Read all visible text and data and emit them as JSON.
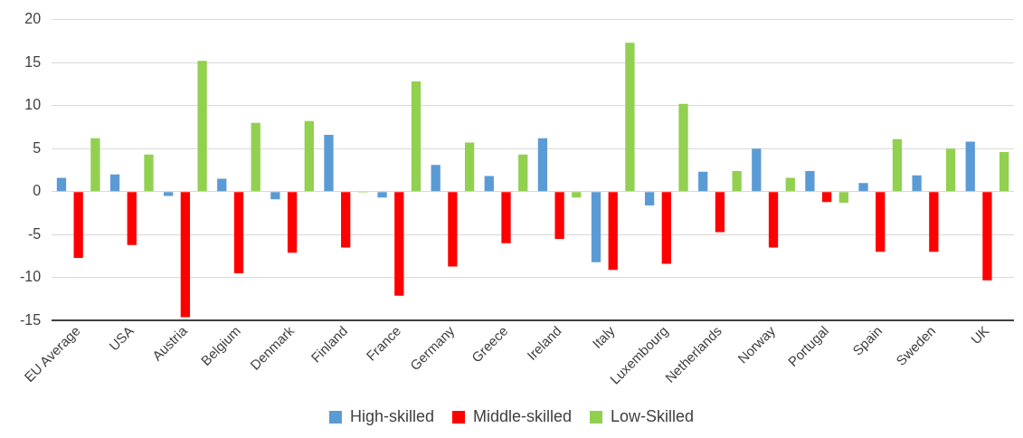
{
  "chart_data": {
    "type": "bar",
    "categories": [
      "EU Average",
      "USA",
      "Austria",
      "Belgium",
      "Denmark",
      "Finland",
      "France",
      "Germany",
      "Greece",
      "Ireland",
      "Italy",
      "Luxembourg",
      "Netherlands",
      "Norway",
      "Portugal",
      "Spain",
      "Sweden",
      "UK"
    ],
    "series": [
      {
        "name": "High-skilled",
        "color": "#5b9bd5",
        "values": [
          1.6,
          2.0,
          -0.5,
          1.5,
          -0.9,
          6.6,
          -0.7,
          3.1,
          1.8,
          6.2,
          -8.2,
          -1.6,
          2.3,
          5.0,
          2.4,
          1.0,
          1.9,
          5.8
        ]
      },
      {
        "name": "Middle-skilled",
        "color": "#ff0000",
        "values": [
          -7.7,
          -6.2,
          -14.6,
          -9.5,
          -7.1,
          -6.5,
          -12.1,
          -8.7,
          -6.0,
          -5.5,
          -9.1,
          -8.4,
          -4.7,
          -6.5,
          -1.2,
          -7.0,
          -7.0,
          -10.3
        ]
      },
      {
        "name": "Low-Skilled",
        "color": "#92d050",
        "values": [
          6.2,
          4.3,
          15.2,
          8.0,
          8.2,
          -0.1,
          12.8,
          5.7,
          4.3,
          -0.7,
          17.3,
          10.2,
          2.4,
          1.6,
          -1.3,
          6.1,
          5.0,
          4.6
        ]
      }
    ],
    "ylim": [
      -15,
      20
    ],
    "yticks": [
      -15,
      -10,
      -5,
      0,
      5,
      10,
      15,
      20
    ],
    "grid": "y",
    "legend": "bottom"
  }
}
